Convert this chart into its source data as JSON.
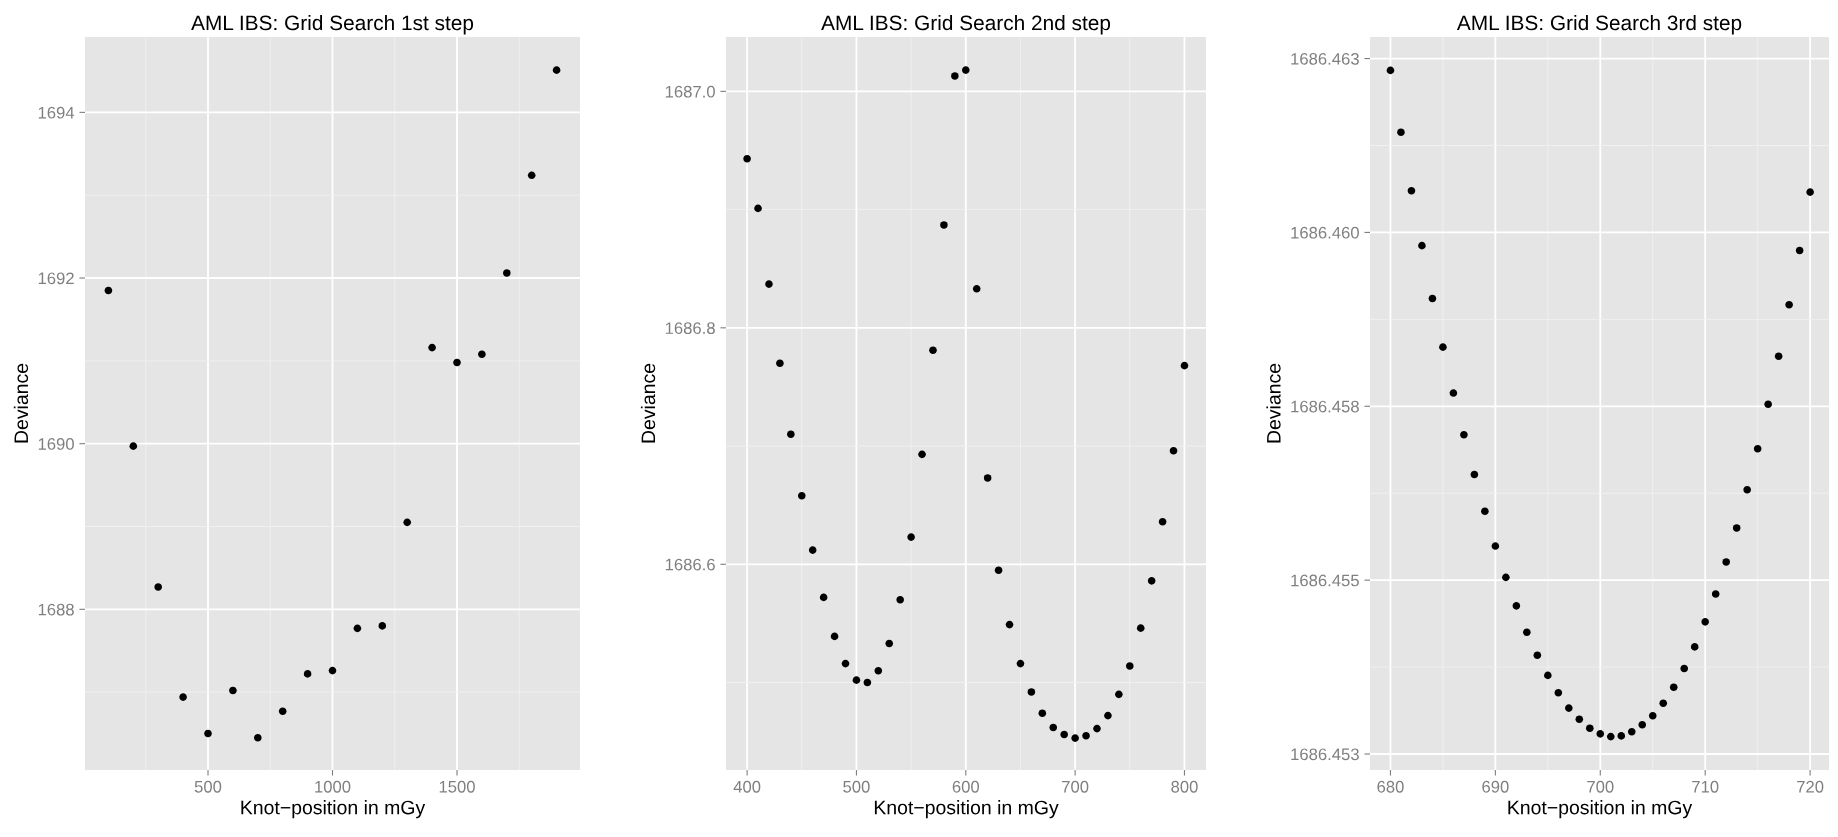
{
  "chart_data": [
    {
      "type": "scatter",
      "title": "AML IBS: Grid Search 1st step",
      "xlabel": "Knot−position in mGy",
      "ylabel": "Deviance",
      "grid": true,
      "marker": "circle",
      "xlim": [
        6,
        1994
      ],
      "xticks": [
        500,
        1000,
        1500
      ],
      "ylim": [
        1686.06,
        1694.91
      ],
      "yticks": [
        1688,
        1690,
        1692,
        1694
      ],
      "series": [
        {
          "color": "#000000",
          "x": [
            100,
            200,
            300,
            400,
            500,
            600,
            700,
            800,
            900,
            1000,
            1100,
            1200,
            1300,
            1400,
            1500,
            1600,
            1700,
            1800,
            1900
          ],
          "values": [
            1691.85,
            1689.97,
            1688.27,
            1686.94,
            1686.5,
            1687.02,
            1686.45,
            1686.77,
            1687.22,
            1687.26,
            1687.77,
            1687.8,
            1689.05,
            1691.16,
            1690.98,
            1691.08,
            1692.06,
            1693.24,
            1694.51
          ]
        }
      ]
    },
    {
      "type": "scatter",
      "title": "AML IBS: Grid Search 2nd step",
      "xlabel": "Knot−position in mGy",
      "ylabel": "Deviance",
      "grid": true,
      "marker": "circle",
      "xlim": [
        380.7,
        819.7
      ],
      "xticks": [
        400,
        500,
        600,
        700,
        800
      ],
      "ylim": [
        1686.426,
        1687.046
      ],
      "yticks": [
        {
          "value": 1686.6,
          "label": "1686.6"
        },
        {
          "value": 1686.8,
          "label": "1686.8"
        },
        {
          "value": 1687.0,
          "label": "1687.0"
        }
      ],
      "series": [
        {
          "color": "#000000",
          "x": [
            400,
            410,
            420,
            430,
            440,
            450,
            460,
            470,
            480,
            490,
            500,
            510,
            520,
            530,
            540,
            550,
            560,
            570,
            580,
            590,
            600,
            610,
            620,
            630,
            640,
            650,
            660,
            670,
            680,
            690,
            700,
            710,
            720,
            730,
            740,
            750,
            760,
            770,
            780,
            790,
            800
          ],
          "values": [
            1686.943,
            1686.901,
            1686.837,
            1686.77,
            1686.71,
            1686.658,
            1686.612,
            1686.572,
            1686.539,
            1686.516,
            1686.502,
            1686.5,
            1686.51,
            1686.533,
            1686.57,
            1686.623,
            1686.693,
            1686.781,
            1686.887,
            1687.013,
            1687.018,
            1686.833,
            1686.673,
            1686.595,
            1686.549,
            1686.516,
            1686.492,
            1686.474,
            1686.462,
            1686.456,
            1686.453,
            1686.455,
            1686.461,
            1686.472,
            1686.49,
            1686.514,
            1686.546,
            1686.586,
            1686.636,
            1686.696,
            1686.768
          ]
        }
      ]
    },
    {
      "type": "scatter",
      "title": "AML IBS: Grid Search 3rd step",
      "xlabel": "Knot−position in mGy",
      "ylabel": "Deviance",
      "grid": true,
      "marker": "circle",
      "xlim": [
        678.05,
        721.8
      ],
      "xticks": [
        680,
        690,
        700,
        710,
        720
      ],
      "ylim": [
        1686.45227,
        1686.46281
      ],
      "yticks": [
        {
          "value": 1686.4525,
          "label": "1686.453"
        },
        {
          "value": 1686.455,
          "label": "1686.455"
        },
        {
          "value": 1686.4575,
          "label": "1686.458"
        },
        {
          "value": 1686.46,
          "label": "1686.460"
        },
        {
          "value": 1686.4625,
          "label": "1686.463"
        }
      ],
      "series": [
        {
          "color": "#000000",
          "x": [
            680,
            681,
            682,
            683,
            684,
            685,
            686,
            687,
            688,
            689,
            690,
            691,
            692,
            693,
            694,
            695,
            696,
            697,
            698,
            699,
            700,
            701,
            702,
            703,
            704,
            705,
            706,
            707,
            708,
            709,
            710,
            711,
            712,
            713,
            714,
            715,
            716,
            717,
            718,
            719,
            720
          ],
          "values": [
            1686.46233,
            1686.46144,
            1686.4606,
            1686.45981,
            1686.45905,
            1686.45835,
            1686.45769,
            1686.45709,
            1686.45652,
            1686.45599,
            1686.45549,
            1686.45504,
            1686.45463,
            1686.45425,
            1686.45392,
            1686.45363,
            1686.45338,
            1686.45316,
            1686.453,
            1686.45287,
            1686.45279,
            1686.45275,
            1686.45276,
            1686.45282,
            1686.45292,
            1686.45305,
            1686.45323,
            1686.45346,
            1686.45373,
            1686.45404,
            1686.4544,
            1686.4548,
            1686.45526,
            1686.45575,
            1686.4563,
            1686.45689,
            1686.45753,
            1686.45822,
            1686.45896,
            1686.45974,
            1686.46058
          ]
        }
      ]
    }
  ]
}
